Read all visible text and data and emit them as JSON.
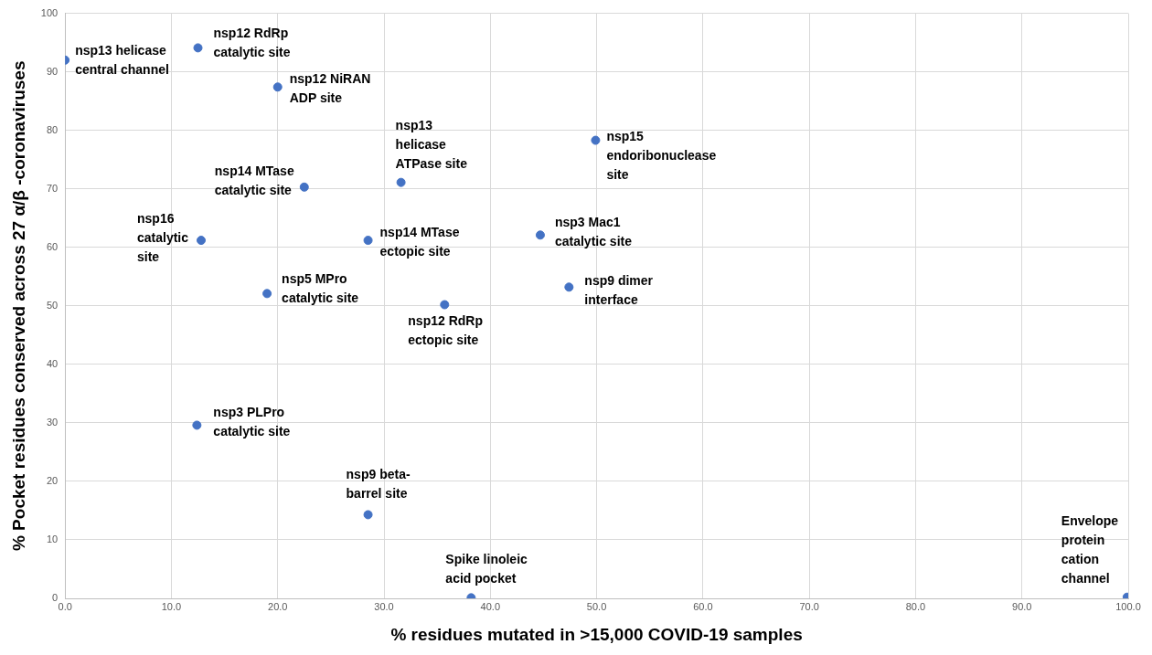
{
  "chart_data": {
    "type": "scatter",
    "xlabel": "% residues mutated in >15,000 COVID-19 samples",
    "ylabel": "% Pocket residues conserved across 27 α/β -coronaviruses",
    "x": [
      0,
      12.5,
      20.0,
      22.5,
      31.6,
      12.8,
      28.5,
      19.0,
      35.7,
      49.9,
      44.7,
      47.4,
      12.4,
      28.5,
      38.2,
      99.9
    ],
    "series": [
      {
        "color": "#4472c4",
        "values": [
          92.0,
          94.1,
          87.4,
          70.3,
          71.1,
          61.2,
          61.2,
          52.1,
          50.2,
          78.3,
          62.1,
          53.2,
          29.6,
          14.3,
          0.1,
          0.2
        ]
      }
    ],
    "annotations": [
      {
        "text": "nsp13 helicase central channel",
        "x": 0,
        "y": 92.0
      },
      {
        "text": "nsp12 RdRp catalytic site",
        "x": 12.5,
        "y": 94.1
      },
      {
        "text": "nsp12 NiRAN ADP site",
        "x": 20.0,
        "y": 87.4
      },
      {
        "text": "nsp14 MTase catalytic site",
        "x": 22.5,
        "y": 70.3
      },
      {
        "text": "nsp13 helicase ATPase site",
        "x": 31.6,
        "y": 71.1
      },
      {
        "text": "nsp16 catalytic site",
        "x": 12.8,
        "y": 61.2
      },
      {
        "text": "nsp14 MTase ectopic site",
        "x": 28.5,
        "y": 61.2
      },
      {
        "text": "nsp5 MPro catalytic site",
        "x": 19.0,
        "y": 52.1
      },
      {
        "text": "nsp12 RdRp ectopic site",
        "x": 35.7,
        "y": 50.2
      },
      {
        "text": "nsp15 endoribonuclease site",
        "x": 49.9,
        "y": 78.3
      },
      {
        "text": "nsp3 Mac1 catalytic site",
        "x": 44.7,
        "y": 62.1
      },
      {
        "text": "nsp9 dimer interface",
        "x": 47.4,
        "y": 53.2
      },
      {
        "text": "nsp3 PLPro catalytic site",
        "x": 12.4,
        "y": 29.6
      },
      {
        "text": "nsp9 beta-barrel site",
        "x": 28.5,
        "y": 14.3
      },
      {
        "text": "Spike linoleic acid pocket",
        "x": 38.2,
        "y": 0.1
      },
      {
        "text": "Envelope protein cation channel",
        "x": 99.9,
        "y": 0.2
      }
    ],
    "xlim": [
      0,
      100
    ],
    "ylim": [
      0,
      100
    ],
    "xticks": [
      {
        "value": 0,
        "label": "0.0"
      },
      {
        "value": 10,
        "label": "10.0"
      },
      {
        "value": 20,
        "label": "20.0"
      },
      {
        "value": 30,
        "label": "30.0"
      },
      {
        "value": 40,
        "label": "40.0"
      },
      {
        "value": 50,
        "label": "50.0"
      },
      {
        "value": 60,
        "label": "60.0"
      },
      {
        "value": 70,
        "label": "70.0"
      },
      {
        "value": 80,
        "label": "80.0"
      },
      {
        "value": 90,
        "label": "90.0"
      },
      {
        "value": 100,
        "label": "100.0"
      }
    ],
    "yticks": [
      0,
      10,
      20,
      30,
      40,
      50,
      60,
      70,
      80,
      90,
      100
    ],
    "grid": true,
    "legend": false,
    "marker": "circle"
  }
}
